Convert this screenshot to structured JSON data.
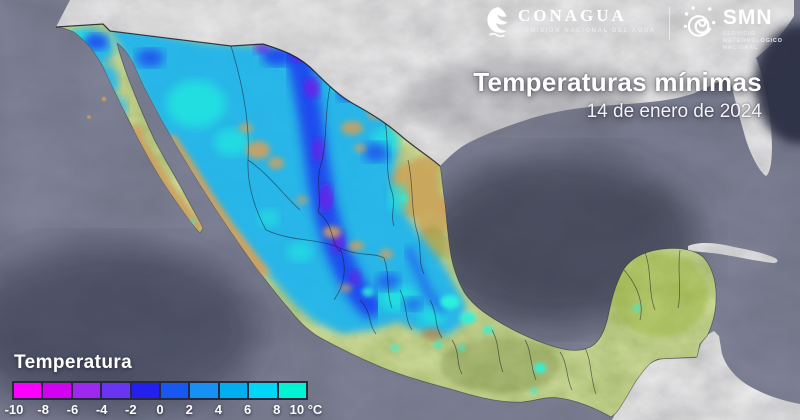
{
  "brand": {
    "conagua": {
      "wordmark": "CONAGUA",
      "tagline": "COMISIÓN NACIONAL DEL AGUA"
    },
    "smn": {
      "wordmark": "SMN",
      "tagline_lines": [
        "SERVICIO",
        "METEOROLÓGICO",
        "NACIONAL"
      ]
    }
  },
  "title_block": {
    "title": "Temperaturas mínimas",
    "date": "14 de enero de 2024"
  },
  "legend": {
    "title": "Temperatura",
    "unit": "°C",
    "tick_labels": [
      "-10",
      "-8",
      "-6",
      "-4",
      "-2",
      "0",
      "2",
      "4",
      "6",
      "8",
      "10 °C"
    ],
    "segment_colors": [
      "#fb00ff",
      "#d400f2",
      "#9e28f0",
      "#6a35f2",
      "#2320ee",
      "#1758f0",
      "#1790f5",
      "#00aef2",
      "#00d7f8",
      "#00f4d4"
    ]
  },
  "palette": {
    "ocean": "#2d3043",
    "neighbor_land_gray": "#b0b0b0",
    "terrain_green": "#84994a",
    "terrain_tan": "#cfa05e",
    "cold_cyan": "#1fb4f0",
    "cold_blue": "#1f30f0",
    "cold_purple": "#7a14e6",
    "cold_turquoise": "#2bf2dc"
  }
}
